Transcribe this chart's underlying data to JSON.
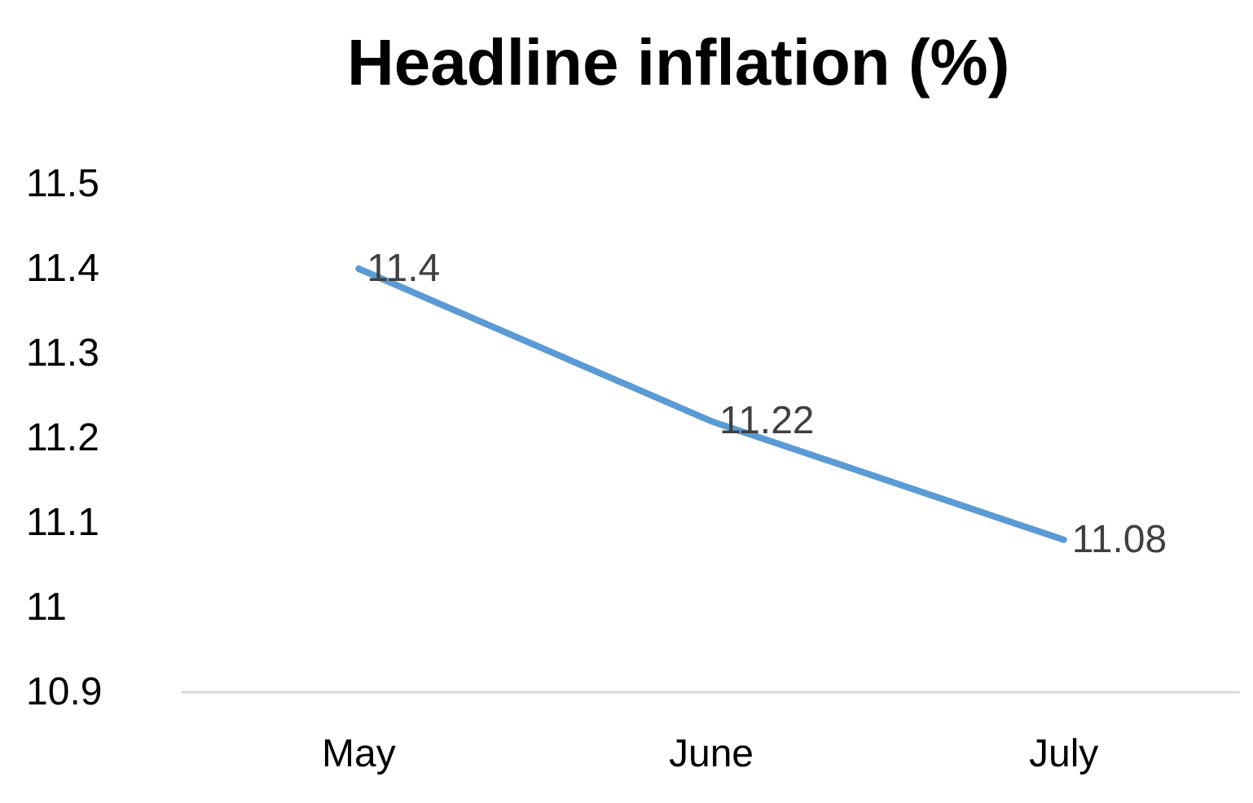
{
  "chart_data": {
    "type": "line",
    "title": "Headline inflation (%)",
    "categories": [
      "May",
      "June",
      "July"
    ],
    "series": [
      {
        "color": "#5b9bd5",
        "values": [
          11.4,
          11.22,
          11.08
        ]
      }
    ],
    "ylim": [
      10.9,
      11.5
    ],
    "yticks": [
      10.9,
      11,
      11.1,
      11.2,
      11.3,
      11.4,
      11.5
    ],
    "data_labels": true,
    "grid": false,
    "marker": "none",
    "line_style": "solid"
  }
}
